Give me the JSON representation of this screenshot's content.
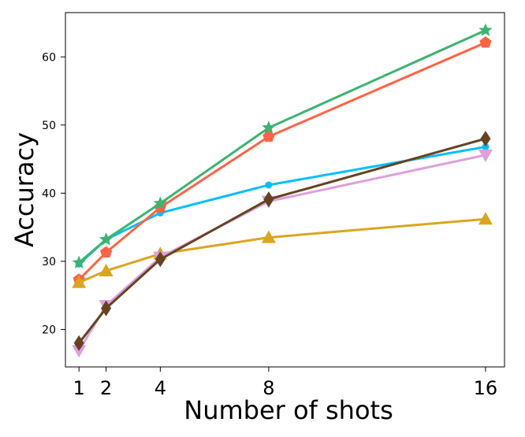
{
  "chart_data": {
    "type": "line",
    "xlabel": "Number of shots",
    "ylabel": "Accuracy",
    "x": [
      1,
      2,
      4,
      8,
      16
    ],
    "xticks": [
      1,
      2,
      4,
      8,
      16
    ],
    "yticks": [
      20,
      30,
      40,
      50,
      60
    ],
    "xlim": [
      0.5,
      16.7
    ],
    "ylim": [
      14.5,
      66.5
    ],
    "grid": false,
    "legend": "none",
    "series": [
      {
        "color": "#00bfff",
        "marker": "circle",
        "values": [
          29.6,
          33.2,
          37.1,
          41.2,
          46.8
        ]
      },
      {
        "color": "#ff6347",
        "marker": "pentagon",
        "values": [
          27.3,
          31.3,
          37.9,
          48.3,
          62.1
        ]
      },
      {
        "color": "#3cb371",
        "marker": "star",
        "values": [
          29.8,
          33.2,
          38.5,
          49.6,
          63.9
        ]
      },
      {
        "color": "#daa520",
        "marker": "triangle-up",
        "values": [
          26.9,
          28.6,
          31.1,
          33.5,
          36.2
        ]
      },
      {
        "color": "#dda0dd",
        "marker": "triangle-down",
        "values": [
          16.9,
          23.5,
          30.6,
          38.8,
          45.6
        ]
      },
      {
        "color": "#654321",
        "marker": "diamond",
        "values": [
          18.0,
          23.1,
          30.3,
          39.1,
          48.0
        ]
      }
    ]
  }
}
